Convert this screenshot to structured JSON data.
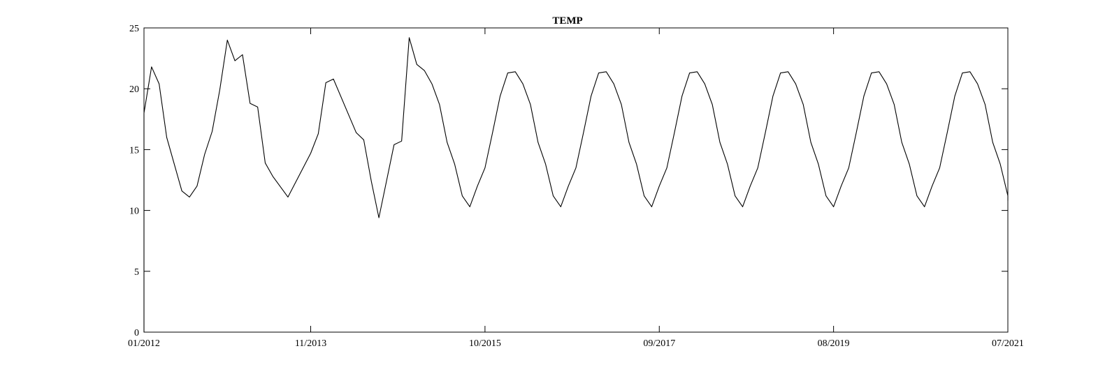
{
  "chart_data": {
    "type": "line",
    "title": "TEMP",
    "xlabel": "",
    "ylabel": "",
    "ylim": [
      0,
      25
    ],
    "xlim": [
      "2012-01",
      "2021-07"
    ],
    "yticks": [
      0,
      5,
      10,
      15,
      20,
      25
    ],
    "xticks": [
      "2012-01",
      "2013-11",
      "2015-10",
      "2017-09",
      "2019-08",
      "2021-07"
    ],
    "xtick_labels": [
      "01/2012",
      "11/2013",
      "10/2015",
      "09/2017",
      "08/2019",
      "07/2021"
    ],
    "grid": false,
    "series": [
      {
        "color": "#000000",
        "points": [
          [
            "2012-01",
            0
          ],
          [
            "2012-01",
            18.0
          ],
          [
            "2012-02",
            21.8
          ],
          [
            "2012-03",
            20.4
          ],
          [
            "2012-04",
            16.0
          ],
          [
            "2012-05",
            13.8
          ],
          [
            "2012-06",
            11.6
          ],
          [
            "2012-07",
            11.1
          ],
          [
            "2012-08",
            12.0
          ],
          [
            "2012-09",
            14.6
          ],
          [
            "2012-10",
            16.5
          ],
          [
            "2012-11",
            19.9
          ],
          [
            "2012-12",
            24.0
          ],
          [
            "2013-01",
            22.3
          ],
          [
            "2013-02",
            22.8
          ],
          [
            "2013-03",
            18.8
          ],
          [
            "2013-04",
            18.5
          ],
          [
            "2013-05",
            13.9
          ],
          [
            "2013-06",
            12.8
          ],
          [
            "2013-08",
            11.1
          ],
          [
            "2013-11",
            14.7
          ],
          [
            "2013-12",
            16.3
          ],
          [
            "2014-01",
            20.5
          ],
          [
            "2014-02",
            20.8
          ],
          [
            "2014-05",
            16.4
          ],
          [
            "2014-06",
            15.8
          ],
          [
            "2014-07",
            12.4
          ],
          [
            "2014-08",
            9.4
          ],
          [
            "2014-10",
            15.4
          ],
          [
            "2014-11",
            15.7
          ],
          [
            "2014-12",
            24.2
          ],
          [
            "2015-01",
            22.0
          ],
          [
            "2015-02",
            21.5
          ],
          [
            "2015-03",
            20.4
          ],
          [
            "2015-04",
            18.7
          ],
          [
            "2015-05",
            15.6
          ],
          [
            "2015-06",
            13.8
          ],
          [
            "2015-07",
            11.2
          ],
          [
            "2015-08",
            10.3
          ],
          [
            "2015-09",
            12.0
          ],
          [
            "2015-10",
            13.5
          ],
          [
            "2015-11",
            16.4
          ],
          [
            "2015-12",
            19.4
          ],
          [
            "2016-01",
            21.3
          ],
          [
            "2016-02",
            21.4
          ],
          [
            "2016-03",
            20.4
          ],
          [
            "2016-04",
            18.7
          ],
          [
            "2016-05",
            15.6
          ],
          [
            "2016-06",
            13.8
          ],
          [
            "2016-07",
            11.2
          ],
          [
            "2016-08",
            10.3
          ],
          [
            "2016-09",
            12.0
          ],
          [
            "2016-10",
            13.5
          ],
          [
            "2016-11",
            16.4
          ],
          [
            "2016-12",
            19.4
          ],
          [
            "2017-01",
            21.3
          ],
          [
            "2017-02",
            21.4
          ],
          [
            "2017-03",
            20.4
          ],
          [
            "2017-04",
            18.7
          ],
          [
            "2017-05",
            15.6
          ],
          [
            "2017-06",
            13.8
          ],
          [
            "2017-07",
            11.2
          ],
          [
            "2017-08",
            10.3
          ],
          [
            "2017-09",
            12.0
          ],
          [
            "2017-10",
            13.5
          ],
          [
            "2017-11",
            16.4
          ],
          [
            "2017-12",
            19.4
          ],
          [
            "2018-01",
            21.3
          ],
          [
            "2018-02",
            21.4
          ],
          [
            "2018-03",
            20.4
          ],
          [
            "2018-04",
            18.7
          ],
          [
            "2018-05",
            15.6
          ],
          [
            "2018-06",
            13.8
          ],
          [
            "2018-07",
            11.2
          ],
          [
            "2018-08",
            10.3
          ],
          [
            "2018-09",
            12.0
          ],
          [
            "2018-10",
            13.5
          ],
          [
            "2018-11",
            16.4
          ],
          [
            "2018-12",
            19.4
          ],
          [
            "2019-01",
            21.3
          ],
          [
            "2019-02",
            21.4
          ],
          [
            "2019-03",
            20.4
          ],
          [
            "2019-04",
            18.7
          ],
          [
            "2019-05",
            15.6
          ],
          [
            "2019-06",
            13.8
          ],
          [
            "2019-07",
            11.2
          ],
          [
            "2019-08",
            10.3
          ],
          [
            "2019-09",
            12.0
          ],
          [
            "2019-10",
            13.5
          ],
          [
            "2019-11",
            16.4
          ],
          [
            "2019-12",
            19.4
          ],
          [
            "2020-01",
            21.3
          ],
          [
            "2020-02",
            21.4
          ],
          [
            "2020-03",
            20.4
          ],
          [
            "2020-04",
            18.7
          ],
          [
            "2020-05",
            15.6
          ],
          [
            "2020-06",
            13.8
          ],
          [
            "2020-07",
            11.2
          ],
          [
            "2020-08",
            10.3
          ],
          [
            "2020-09",
            12.0
          ],
          [
            "2020-10",
            13.5
          ],
          [
            "2020-11",
            16.4
          ],
          [
            "2020-12",
            19.4
          ],
          [
            "2021-01",
            21.3
          ],
          [
            "2021-02",
            21.4
          ],
          [
            "2021-03",
            20.4
          ],
          [
            "2021-04",
            18.7
          ],
          [
            "2021-05",
            15.6
          ],
          [
            "2021-06",
            13.8
          ],
          [
            "2021-07",
            11.2
          ],
          [
            "2021-07",
            10.8
          ]
        ]
      }
    ]
  }
}
